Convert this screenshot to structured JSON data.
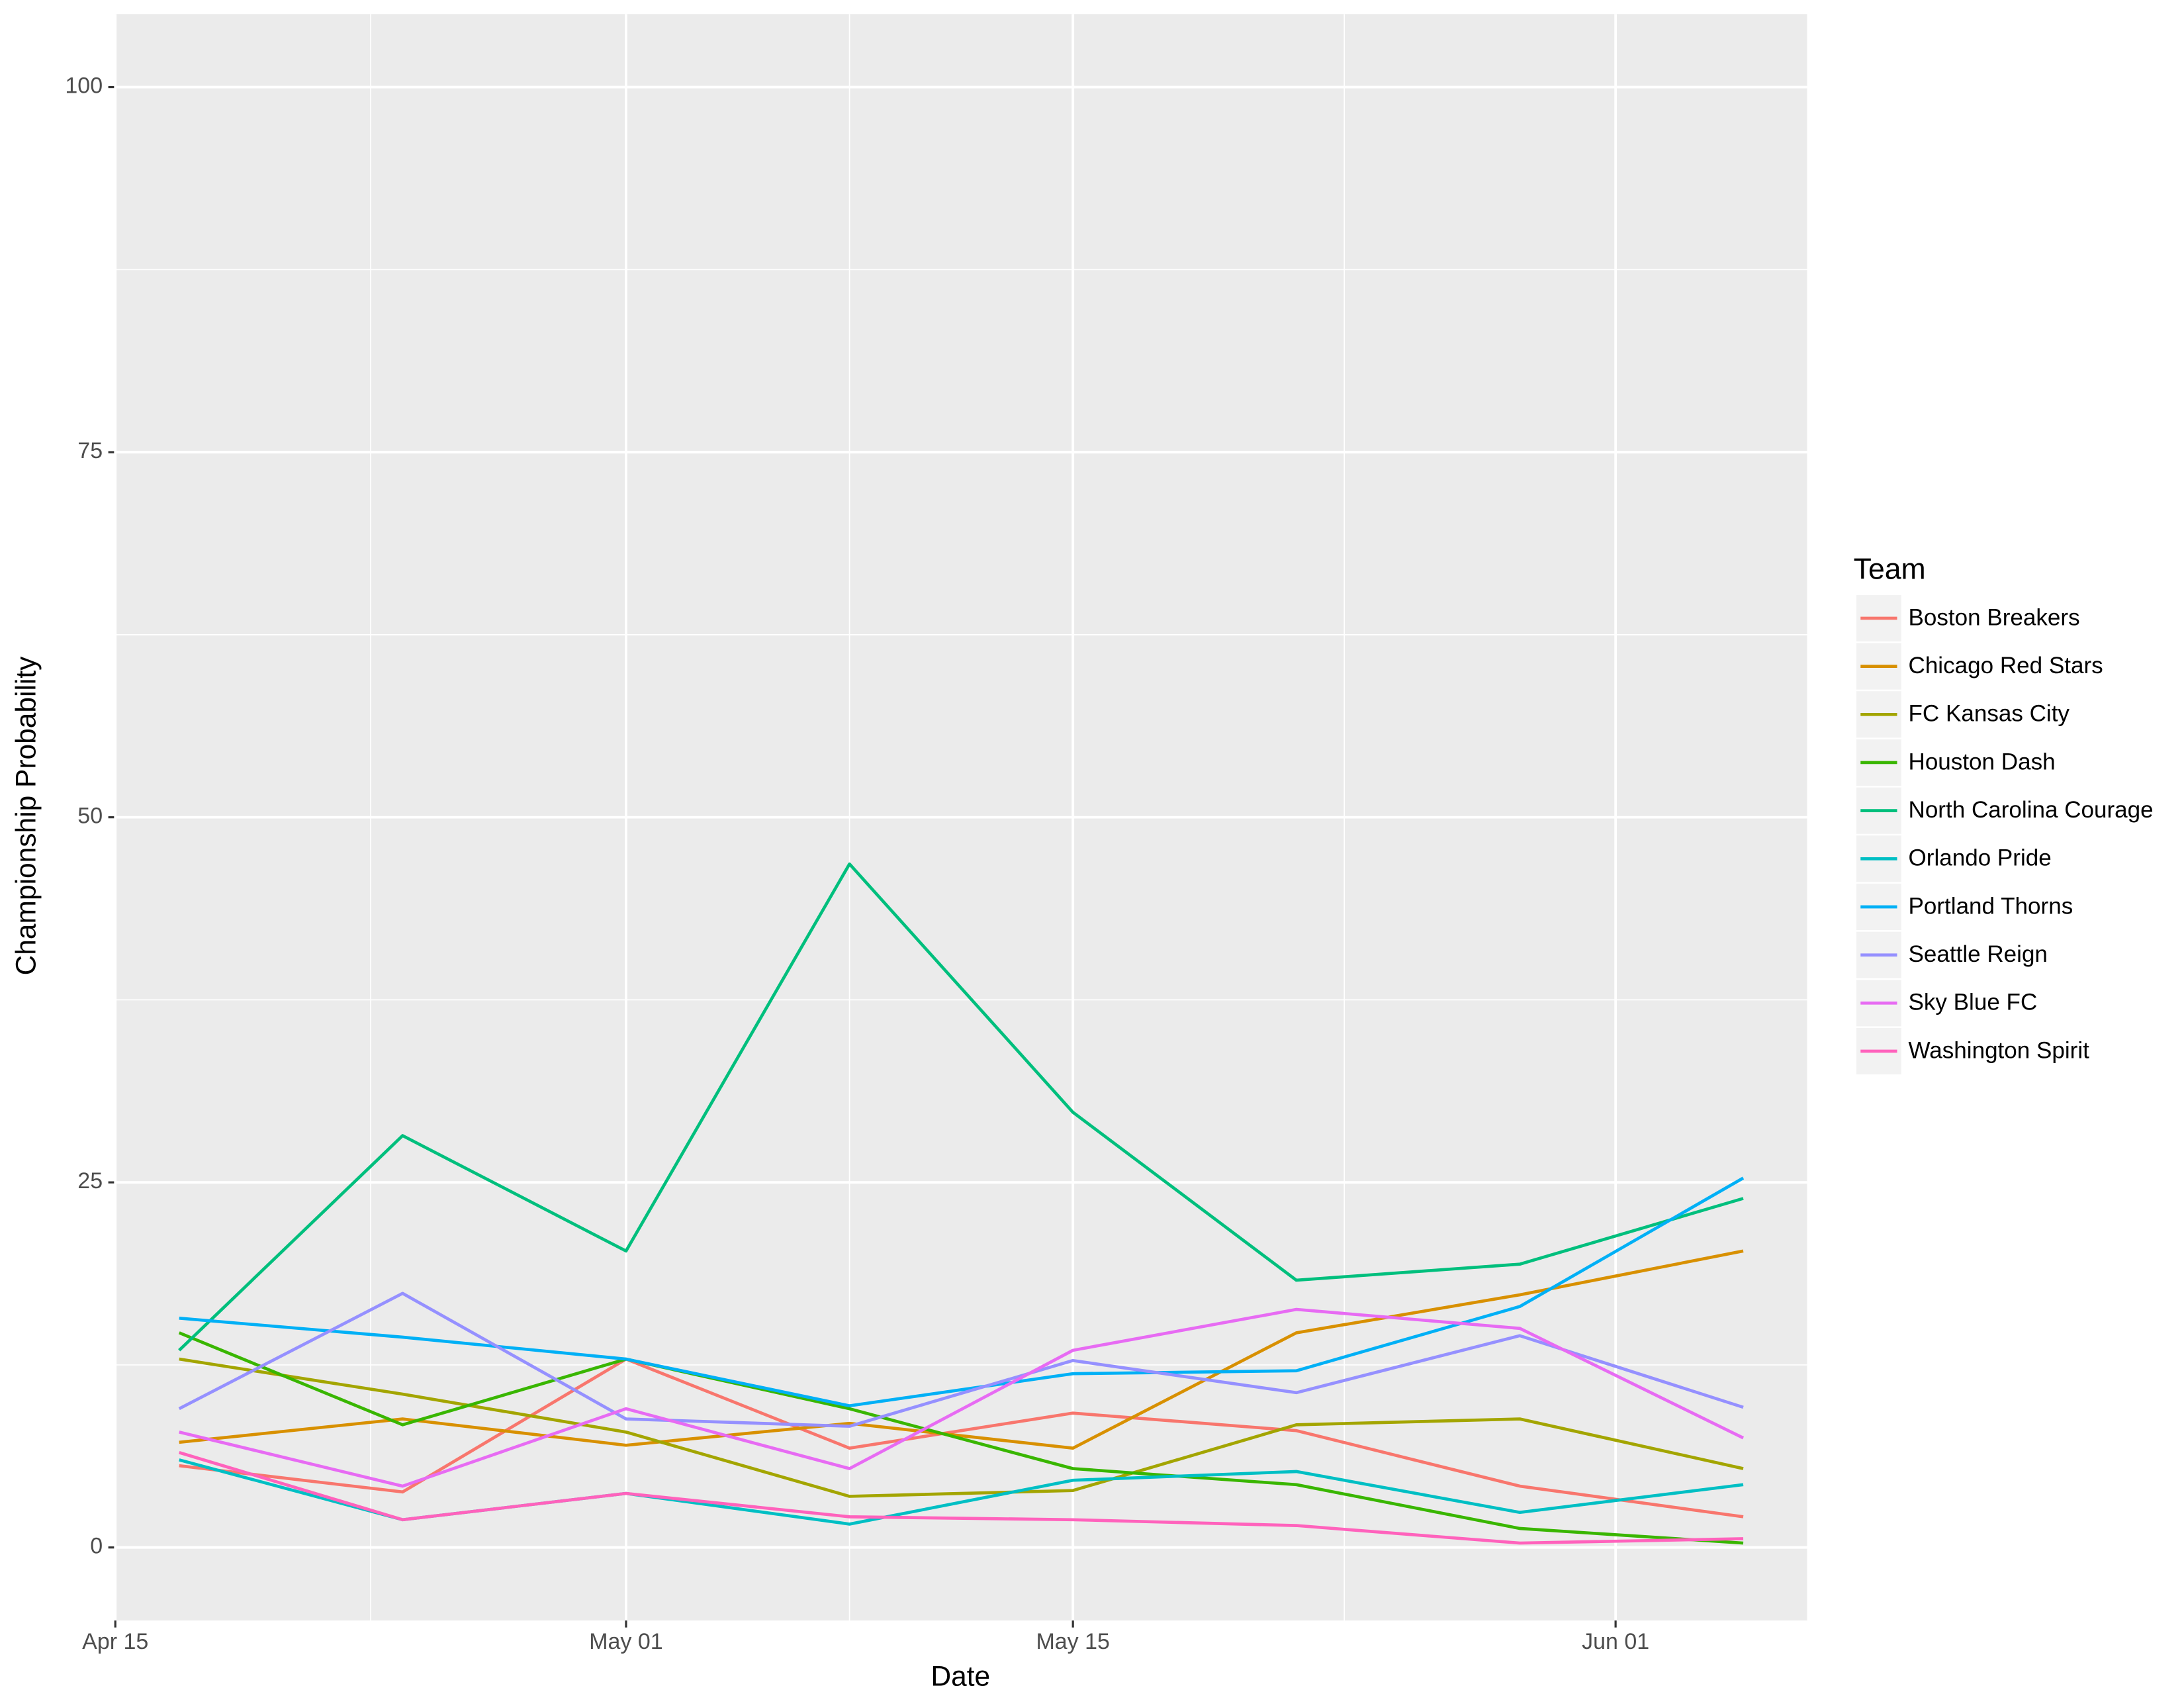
{
  "chart_data": {
    "type": "line",
    "xlabel": "Date",
    "ylabel": "Championship Probability",
    "legend_title": "Team",
    "x": [
      "Apr 17",
      "Apr 24",
      "May 01",
      "May 08",
      "May 15",
      "May 22",
      "May 29",
      "Jun 05"
    ],
    "xlim": [
      "Apr 15",
      "Jun 07"
    ],
    "xticks": [
      "Apr 15",
      "May 01",
      "May 15",
      "Jun 01"
    ],
    "ylim": [
      -5,
      105
    ],
    "yticks": [
      0,
      25,
      50,
      75,
      100
    ],
    "grid": true,
    "legend": "right",
    "series": [
      {
        "name": "Boston Breakers",
        "color": "#F8766D",
        "values": [
          5.6,
          3.8,
          12.9,
          6.8,
          9.2,
          8.0,
          4.2,
          2.1
        ]
      },
      {
        "name": "Chicago Red Stars",
        "color": "#D89000",
        "values": [
          7.2,
          8.8,
          7.0,
          8.5,
          6.8,
          14.7,
          17.3,
          20.3
        ]
      },
      {
        "name": "FC Kansas City",
        "color": "#A3A500",
        "values": [
          12.9,
          10.5,
          7.9,
          3.5,
          3.9,
          8.4,
          8.8,
          5.4
        ]
      },
      {
        "name": "Houston Dash",
        "color": "#39B600",
        "values": [
          14.7,
          8.4,
          12.9,
          9.5,
          5.4,
          4.3,
          1.3,
          0.3
        ]
      },
      {
        "name": "North Carolina Courage",
        "color": "#00BF7D",
        "values": [
          13.5,
          28.2,
          20.3,
          46.8,
          29.8,
          18.3,
          19.4,
          23.9
        ]
      },
      {
        "name": "Orlando Pride",
        "color": "#00BFC4",
        "values": [
          6.0,
          1.9,
          3.7,
          1.6,
          4.6,
          5.2,
          2.4,
          4.3
        ]
      },
      {
        "name": "Portland Thorns",
        "color": "#00B0F6",
        "values": [
          15.7,
          14.4,
          12.9,
          9.7,
          11.9,
          12.1,
          16.5,
          25.3
        ]
      },
      {
        "name": "Seattle Reign",
        "color": "#9590FF",
        "values": [
          9.5,
          17.4,
          8.8,
          8.3,
          12.8,
          10.6,
          14.5,
          9.6
        ]
      },
      {
        "name": "Sky Blue FC",
        "color": "#E76BF3",
        "values": [
          7.9,
          4.2,
          9.5,
          5.4,
          13.5,
          16.3,
          15.0,
          7.5
        ]
      },
      {
        "name": "Washington Spirit",
        "color": "#FF62BC",
        "values": [
          6.5,
          1.9,
          3.7,
          2.1,
          1.9,
          1.5,
          0.3,
          0.6
        ]
      }
    ]
  }
}
